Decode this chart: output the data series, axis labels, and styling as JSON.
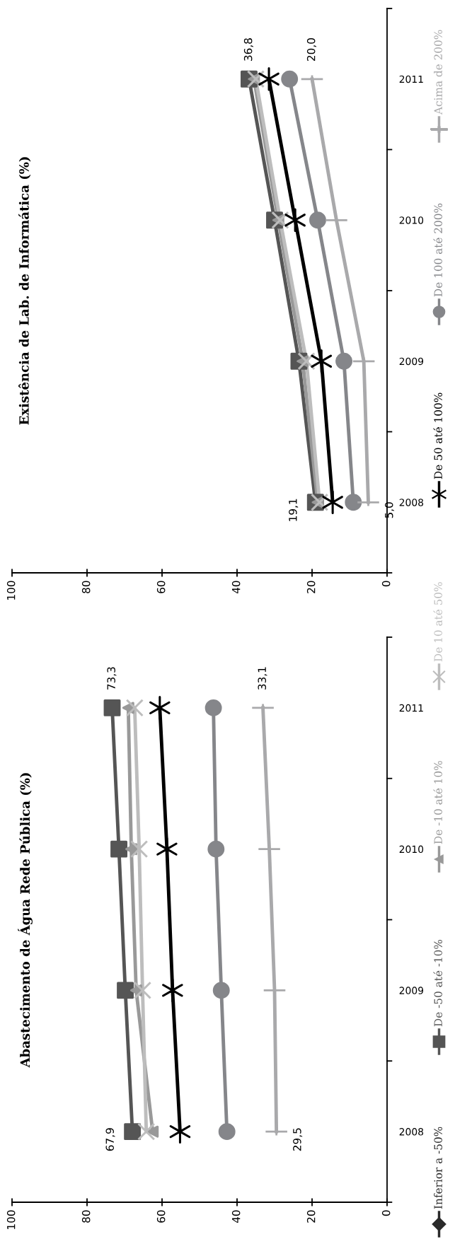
{
  "chart_data": [
    {
      "type": "line",
      "orientation": "horizontal",
      "title": "Existência de Lab. de Informática (%)",
      "categories": [
        "2011",
        "2010",
        "2009",
        "2008"
      ],
      "xlim": [
        100,
        0
      ],
      "xticks": [
        100,
        80,
        60,
        40,
        20,
        0
      ],
      "grid": false,
      "legend": "right",
      "line_style": "solid",
      "series": [
        {
          "name": "Inferior a -50%",
          "color": "#2b2b2b",
          "marker": "diamond",
          "values": [
            null,
            null,
            null,
            null
          ]
        },
        {
          "name": "De -50 até -10%",
          "color": "#555555",
          "marker": "square",
          "values": [
            36.8,
            30.0,
            23.5,
            19.1
          ],
          "value_labels": [
            "36,8",
            null,
            null,
            "19,1"
          ]
        },
        {
          "name": "De -10 até 10%",
          "color": "#999999",
          "marker": "triangle",
          "values": [
            35.5,
            29.0,
            22.5,
            18.5
          ]
        },
        {
          "name": "De 10 até 50%",
          "color": "#bdbdbd",
          "marker": "cross",
          "values": [
            35.0,
            28.5,
            21.5,
            18.0
          ]
        },
        {
          "name": "De 50 até 100%",
          "color": "#000000",
          "marker": "cross",
          "values": [
            31.5,
            24.5,
            17.5,
            14.5
          ]
        },
        {
          "name": "De 100 até 200%",
          "color": "#85868a",
          "marker": "circle",
          "values": [
            26.0,
            18.5,
            11.5,
            9.0
          ]
        },
        {
          "name": "Acima de 200%",
          "color": "#a9a9ab",
          "marker": "cross",
          "values": [
            20.0,
            13.5,
            6.2,
            5.0
          ],
          "value_labels": [
            "20,0",
            null,
            null,
            "5,0"
          ]
        }
      ]
    },
    {
      "type": "line",
      "orientation": "horizontal",
      "title": "Abastecimento de Água Rede Pública (%)",
      "categories": [
        "2011",
        "2010",
        "2009",
        "2008"
      ],
      "xlim": [
        100,
        0
      ],
      "xticks": [
        100,
        80,
        60,
        40,
        20,
        0
      ],
      "grid": false,
      "line_style": "solid",
      "series": [
        {
          "color": "#2b2b2b",
          "marker": "diamond",
          "values": [
            null,
            null,
            null,
            null
          ]
        },
        {
          "color": "#555555",
          "marker": "square",
          "values": [
            73.3,
            71.5,
            69.8,
            67.9
          ],
          "value_labels": [
            "73,3",
            null,
            null,
            "67,9"
          ]
        },
        {
          "color": "#999999",
          "marker": "triangle",
          "values": [
            69.0,
            68.2,
            66.9,
            62.5
          ]
        },
        {
          "color": "#bdbdbd",
          "marker": "cross",
          "values": [
            67.3,
            66.1,
            65.2,
            64.2
          ]
        },
        {
          "color": "#000000",
          "marker": "cross",
          "values": [
            60.6,
            58.7,
            57.2,
            55.2
          ]
        },
        {
          "color": "#85868a",
          "marker": "circle",
          "values": [
            46.3,
            45.6,
            44.2,
            42.7
          ]
        },
        {
          "color": "#a9a9ab",
          "marker": "cross",
          "values": [
            33.1,
            31.4,
            30.0,
            29.5
          ],
          "value_labels": [
            "33,1",
            null,
            null,
            "29,5"
          ]
        }
      ]
    }
  ]
}
